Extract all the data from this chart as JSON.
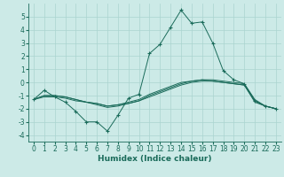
{
  "xlabel": "Humidex (Indice chaleur)",
  "bg_color": "#cceae7",
  "grid_color": "#aad4d0",
  "line_color": "#1a6b5a",
  "marker": "+",
  "xlim": [
    -0.5,
    23.5
  ],
  "ylim": [
    -4.5,
    6.0
  ],
  "yticks": [
    -4,
    -3,
    -2,
    -1,
    0,
    1,
    2,
    3,
    4,
    5
  ],
  "xticks": [
    0,
    1,
    2,
    3,
    4,
    5,
    6,
    7,
    8,
    9,
    10,
    11,
    12,
    13,
    14,
    15,
    16,
    17,
    18,
    19,
    20,
    21,
    22,
    23
  ],
  "series_main": [
    -1.3,
    -0.6,
    -1.1,
    -1.5,
    -2.2,
    -3.0,
    -3.0,
    -3.7,
    -2.5,
    -1.2,
    -0.9,
    2.2,
    2.9,
    4.2,
    5.5,
    4.5,
    4.6,
    3.0,
    0.9,
    0.2,
    -0.1,
    -1.4,
    -1.8,
    -2.0
  ],
  "series_ref": [
    [
      -1.3,
      -1.1,
      -1.1,
      -1.2,
      -1.4,
      -1.5,
      -1.6,
      -1.8,
      -1.7,
      -1.6,
      -1.4,
      -1.1,
      -0.8,
      -0.5,
      -0.2,
      0.0,
      0.1,
      0.1,
      0.0,
      -0.1,
      -0.2,
      -1.4,
      -1.8,
      -2.0
    ],
    [
      -1.3,
      -1.0,
      -1.0,
      -1.1,
      -1.3,
      -1.5,
      -1.6,
      -1.8,
      -1.7,
      -1.5,
      -1.3,
      -0.9,
      -0.6,
      -0.3,
      0.0,
      0.1,
      0.2,
      0.2,
      0.1,
      0.0,
      -0.1,
      -1.3,
      -1.8,
      -2.0
    ],
    [
      -1.3,
      -1.0,
      -1.0,
      -1.1,
      -1.3,
      -1.5,
      -1.7,
      -1.9,
      -1.8,
      -1.6,
      -1.4,
      -1.0,
      -0.7,
      -0.4,
      -0.1,
      0.1,
      0.2,
      0.1,
      0.0,
      -0.1,
      -0.2,
      -1.5,
      -1.8,
      -2.0
    ]
  ],
  "tick_fontsize": 5.5,
  "xlabel_fontsize": 6.5
}
